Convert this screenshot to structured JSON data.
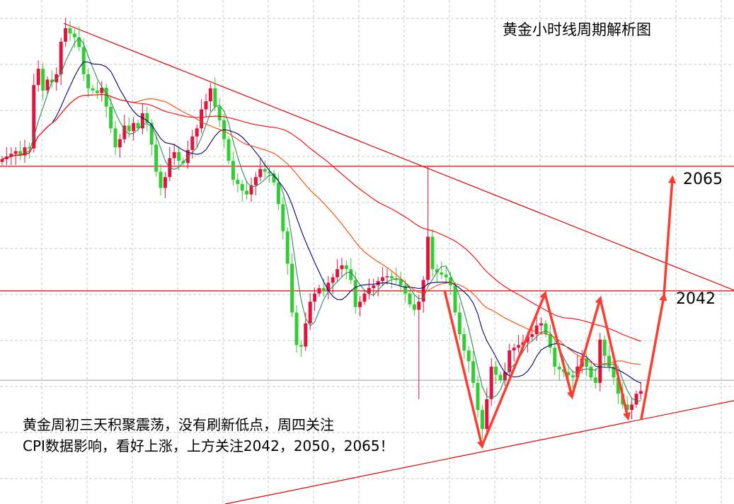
{
  "chart_data": {
    "type": "candlestick",
    "title": "黄金小时线周期解析图",
    "bull_color": "#e0143c",
    "bear_color": "#32cd32",
    "grid": true,
    "closes": [
      2066.3,
      2066.8,
      2067.3,
      2067.8,
      2067,
      2068.5,
      2068.3,
      2080,
      2083,
      2079,
      2081,
      2080.5,
      2082,
      2088,
      2090.5,
      2089.5,
      2088.8,
      2087,
      2082,
      2079.4,
      2079,
      2078.5,
      2079.5,
      2076,
      2072,
      2068.5,
      2070,
      2072.5,
      2071.5,
      2073,
      2072,
      2074.8,
      2073,
      2069,
      2064,
      2061,
      2063,
      2066.5,
      2067.6,
      2066,
      2065.6,
      2068,
      2070.5,
      2072,
      2075.5,
      2077,
      2079.4,
      2076,
      2073.5,
      2070,
      2066,
      2062.5,
      2061.7,
      2060.5,
      2059.8,
      2061.5,
      2063,
      2064.5,
      2064,
      2063.7,
      2062,
      2058,
      2053,
      2047,
      2038,
      2032,
      2031.7,
      2036,
      2040,
      2041.5,
      2042.5,
      2042,
      2043.5,
      2044.5,
      2046,
      2046.7,
      2046,
      2044,
      2039,
      2040,
      2041.5,
      2042.5,
      2043,
      2043.8,
      2044.5,
      2044.7,
      2044.3,
      2044,
      2043,
      2041.5,
      2039.5,
      2038.5,
      2040,
      2044,
      2052,
      2046,
      2045.4,
      2045,
      2044.5,
      2043,
      2038,
      2034,
      2031,
      2029,
      2025,
      2020,
      2016.5,
      2022,
      2028,
      2026.5,
      2025.5,
      2027,
      2031,
      2031.5,
      2032,
      2032.5,
      2033.5,
      2034,
      2035.6,
      2036,
      2034,
      2031.5,
      2028,
      2027.5,
      2027,
      2026.4,
      2026,
      2028,
      2029.5,
      2028,
      2026,
      2025,
      2033,
      2030,
      2028,
      2026,
      2023,
      2021,
      2020,
      2021,
      2023,
      2023.5
    ],
    "wick_extremes": [
      {
        "index": 94,
        "high": 2065
      },
      {
        "index": 92,
        "low": 2022
      }
    ],
    "moving_averages": [
      {
        "period": 5,
        "color": "#2e8b57"
      },
      {
        "period": 12,
        "color": "#000080"
      },
      {
        "period": 30,
        "color": "#ff4500"
      },
      {
        "period": 60,
        "color": "#ff0000"
      }
    ],
    "levels": [
      {
        "price": 2065,
        "label": "2065",
        "color": "#e00000"
      },
      {
        "price": 2042,
        "label": "2042",
        "color": "#e00000"
      },
      {
        "price": 2025.5,
        "label": "",
        "color": "#b0b0b0"
      }
    ],
    "annotation_color": "#ff3b30",
    "annotation_lines": [
      "黄金周初三天积聚震荡，没有刷新低点，周四关注",
      "CPI数据影响，看好上涨，上方关注2042，2050，2065！"
    ]
  }
}
